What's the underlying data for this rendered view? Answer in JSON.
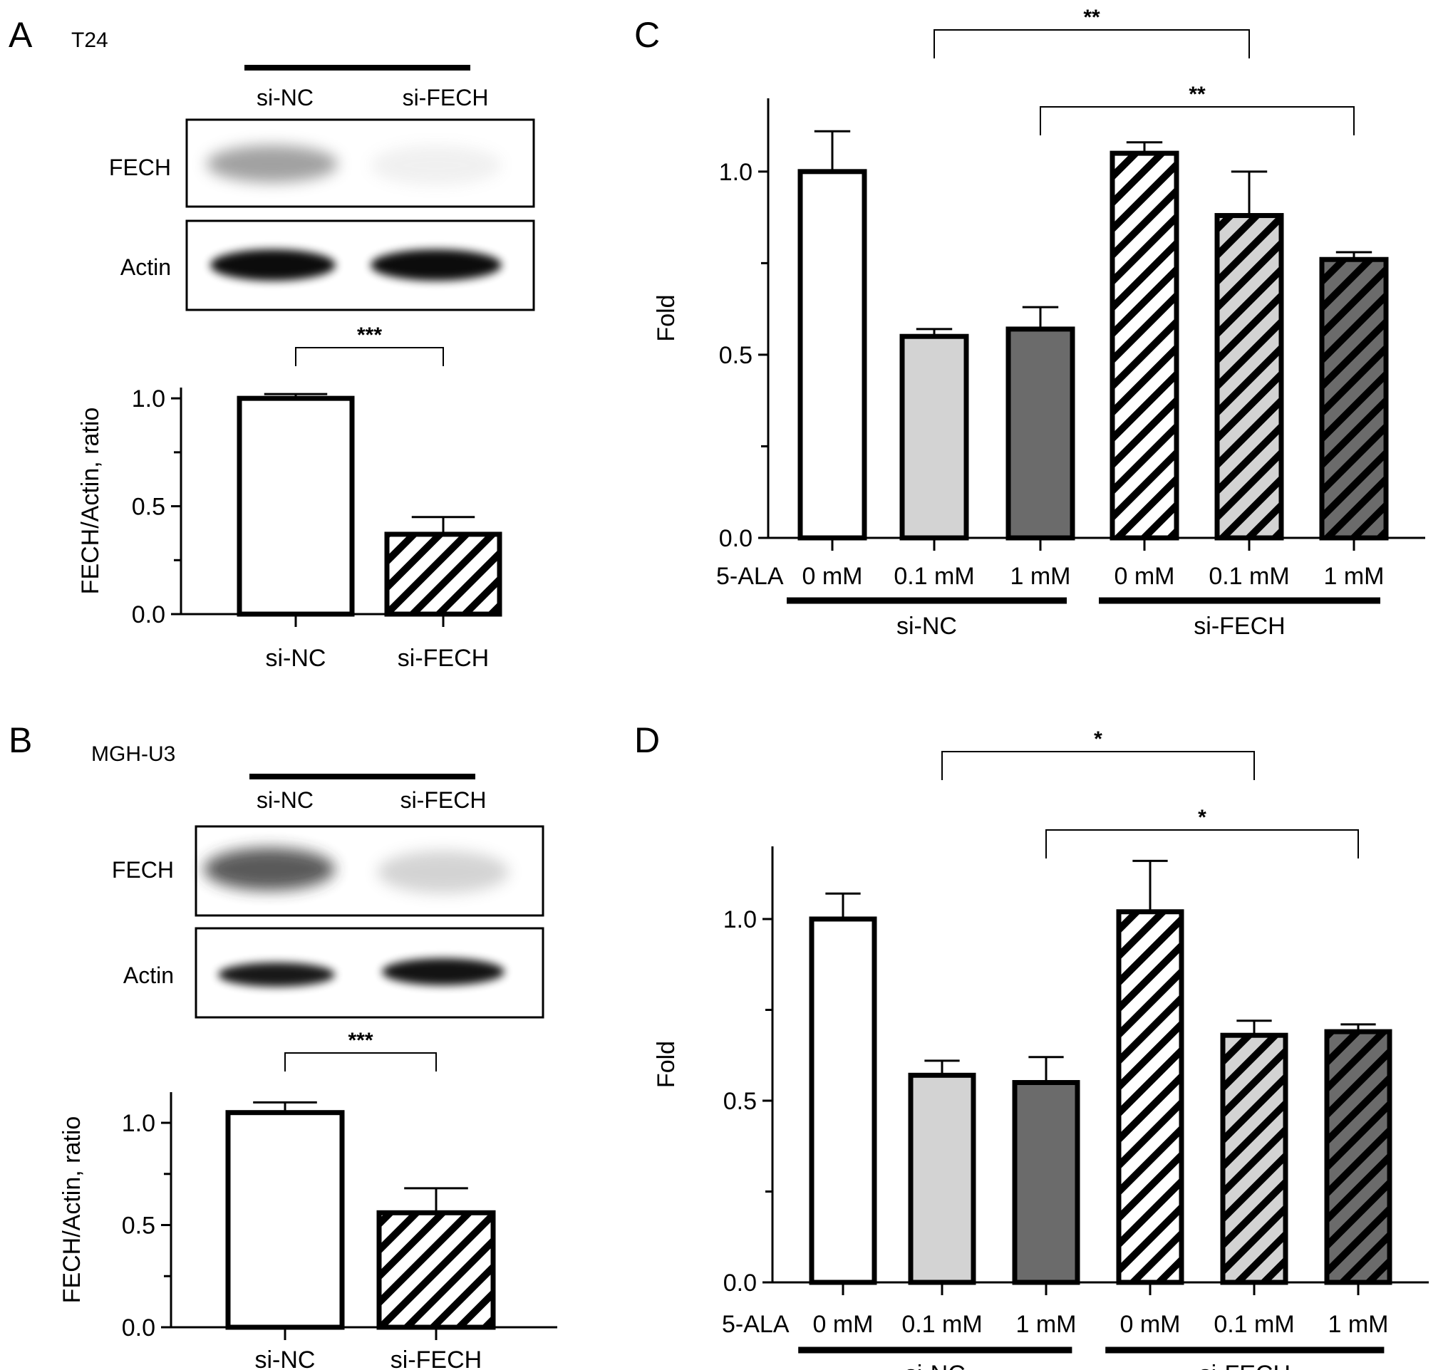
{
  "panels": {
    "A": {
      "letter": "A",
      "cell_line": "T24"
    },
    "B": {
      "letter": "B",
      "cell_line": "MGH-U3"
    },
    "C": {
      "letter": "C"
    },
    "D": {
      "letter": "D"
    }
  },
  "blots": [
    {
      "panel": "A",
      "lanes": [
        "si-NC",
        "si-FECH"
      ],
      "rows": [
        {
          "label": "FECH",
          "intensity": [
            0.55,
            0.08
          ]
        },
        {
          "label": "Actin",
          "intensity": [
            1.0,
            1.0
          ]
        }
      ]
    },
    {
      "panel": "B",
      "lanes": [
        "si-NC",
        "si-FECH"
      ],
      "rows": [
        {
          "label": "FECH",
          "intensity": [
            0.8,
            0.25
          ]
        },
        {
          "label": "Actin",
          "intensity": [
            0.95,
            0.95
          ]
        }
      ]
    }
  ],
  "chart_data": [
    {
      "panel": "A",
      "type": "bar",
      "categories": [
        "si-NC",
        "si-FECH"
      ],
      "values": [
        1.0,
        0.37
      ],
      "errors": [
        0.02,
        0.08
      ],
      "patterns": [
        "white",
        "hatch-white"
      ],
      "ylabel": "FECH/Actin, ratio",
      "ylim": [
        0,
        1.05
      ],
      "yticks": [
        "0.0",
        "0.5",
        "1.0"
      ],
      "significance": [
        {
          "from": 0,
          "to": 1,
          "label": "***"
        }
      ]
    },
    {
      "panel": "B",
      "type": "bar",
      "categories": [
        "si-NC",
        "si-FECH"
      ],
      "values": [
        1.05,
        0.56
      ],
      "errors": [
        0.05,
        0.12
      ],
      "patterns": [
        "white",
        "hatch-white"
      ],
      "ylabel": "FECH/Actin, ratio",
      "ylim": [
        0,
        1.15
      ],
      "yticks": [
        "0.0",
        "0.5",
        "1.0"
      ],
      "significance": [
        {
          "from": 0,
          "to": 1,
          "label": "***"
        }
      ]
    },
    {
      "panel": "C",
      "type": "bar",
      "categories": [
        "0 mM",
        "0.1 mM",
        "1 mM",
        "0 mM",
        "0.1 mM",
        "1 mM"
      ],
      "values": [
        1.0,
        0.55,
        0.57,
        1.05,
        0.88,
        0.76
      ],
      "errors": [
        0.11,
        0.02,
        0.06,
        0.03,
        0.12,
        0.02
      ],
      "patterns": [
        "white",
        "light",
        "dark",
        "hatch-white",
        "hatch-light",
        "hatch-dark"
      ],
      "ylabel": "Fold",
      "ylim": [
        0,
        1.2
      ],
      "yticks": [
        "0.0",
        "0.5",
        "1.0"
      ],
      "x_prefix": "5-ALA",
      "groups": [
        {
          "label": "si-NC",
          "from": 0,
          "to": 2
        },
        {
          "label": "si-FECH",
          "from": 3,
          "to": 5
        }
      ],
      "significance": [
        {
          "from": 1,
          "to": 4,
          "label": "**"
        },
        {
          "from": 2,
          "to": 5,
          "label": "**"
        }
      ]
    },
    {
      "panel": "D",
      "type": "bar",
      "categories": [
        "0 mM",
        "0.1 mM",
        "1 mM",
        "0 mM",
        "0.1 mM",
        "1 mM"
      ],
      "values": [
        1.0,
        0.57,
        0.55,
        1.02,
        0.68,
        0.69
      ],
      "errors": [
        0.07,
        0.04,
        0.07,
        0.14,
        0.04,
        0.02
      ],
      "patterns": [
        "white",
        "light",
        "dark",
        "hatch-white",
        "hatch-light",
        "hatch-dark"
      ],
      "ylabel": "Fold",
      "ylim": [
        0,
        1.2
      ],
      "yticks": [
        "0.0",
        "0.5",
        "1.0"
      ],
      "x_prefix": "5-ALA",
      "groups": [
        {
          "label": "si-NC",
          "from": 0,
          "to": 2
        },
        {
          "label": "si-FECH",
          "from": 3,
          "to": 5
        }
      ],
      "significance": [
        {
          "from": 1,
          "to": 4,
          "label": "*"
        },
        {
          "from": 2,
          "to": 5,
          "label": "*"
        }
      ]
    }
  ]
}
